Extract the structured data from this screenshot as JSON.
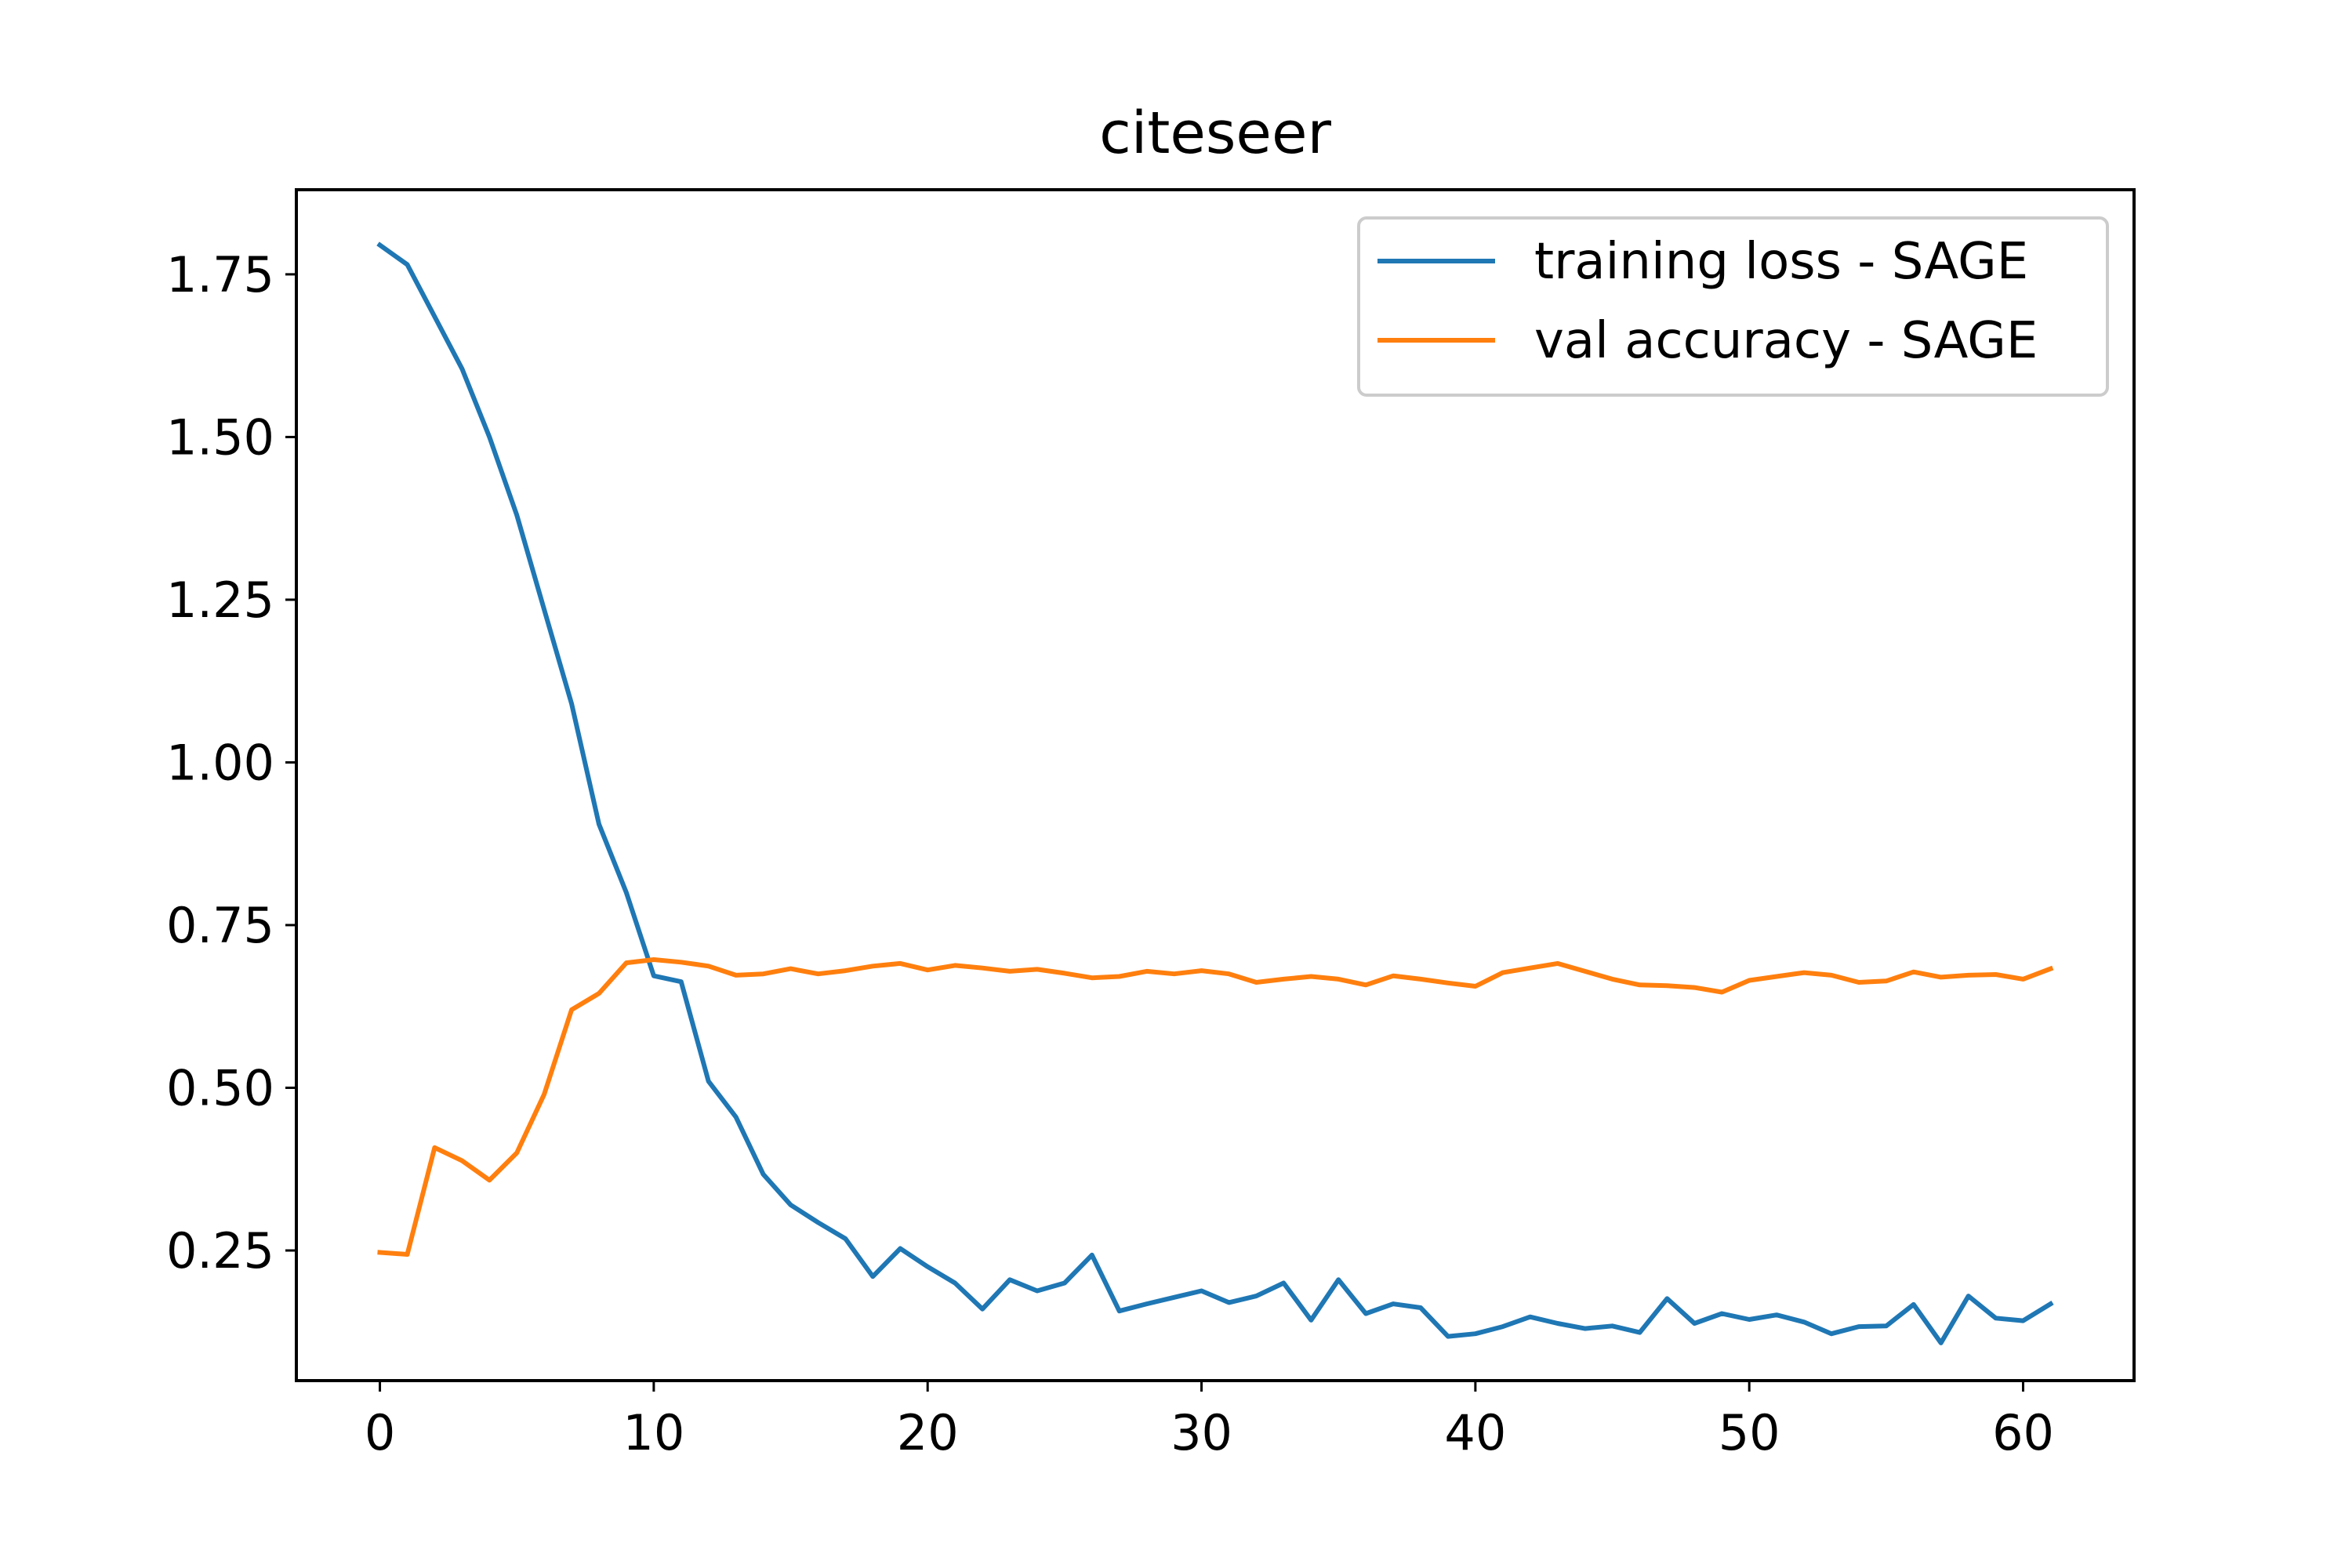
{
  "chart_data": {
    "type": "line",
    "title": "citeseer",
    "xlabel": "",
    "ylabel": "",
    "xlim": [
      -3.05,
      64.05
    ],
    "ylim": [
      0.05,
      1.88
    ],
    "xticks": [
      0,
      10,
      20,
      30,
      40,
      50,
      60
    ],
    "yticks": [
      0.25,
      0.5,
      0.75,
      1.0,
      1.25,
      1.5,
      1.75
    ],
    "ytick_labels": [
      "0.25",
      "0.50",
      "0.75",
      "1.00",
      "1.25",
      "1.50",
      "1.75"
    ],
    "grid": false,
    "legend_position": "top-right",
    "series": [
      {
        "name": "training loss - SAGE",
        "color": "#1f77b4",
        "values": [
          1.795,
          1.765,
          1.685,
          1.605,
          1.5,
          1.38,
          1.235,
          1.09,
          0.905,
          0.8,
          0.672,
          0.663,
          0.51,
          0.455,
          0.367,
          0.32,
          0.293,
          0.268,
          0.21,
          0.253,
          0.225,
          0.2,
          0.16,
          0.205,
          0.188,
          0.2,
          0.243,
          0.157,
          0.168,
          0.178,
          0.188,
          0.17,
          0.18,
          0.2,
          0.143,
          0.205,
          0.153,
          0.168,
          0.162,
          0.118,
          0.122,
          0.133,
          0.148,
          0.138,
          0.13,
          0.134,
          0.124,
          0.176,
          0.138,
          0.153,
          0.144,
          0.151,
          0.14,
          0.122,
          0.133,
          0.134,
          0.167,
          0.108,
          0.18,
          0.146,
          0.142,
          0.168
        ]
      },
      {
        "name": "val accuracy - SAGE",
        "color": "#ff7f0e",
        "values": [
          0.247,
          0.244,
          0.408,
          0.388,
          0.358,
          0.4,
          0.49,
          0.62,
          0.645,
          0.692,
          0.697,
          0.693,
          0.687,
          0.673,
          0.675,
          0.683,
          0.675,
          0.68,
          0.687,
          0.691,
          0.681,
          0.688,
          0.684,
          0.679,
          0.682,
          0.676,
          0.669,
          0.671,
          0.679,
          0.675,
          0.68,
          0.675,
          0.662,
          0.667,
          0.671,
          0.667,
          0.658,
          0.672,
          0.667,
          0.661,
          0.656,
          0.677,
          0.684,
          0.691,
          0.679,
          0.667,
          0.658,
          0.657,
          0.654,
          0.647,
          0.665,
          0.671,
          0.677,
          0.673,
          0.662,
          0.664,
          0.678,
          0.67,
          0.673,
          0.674,
          0.667,
          0.683
        ]
      }
    ]
  }
}
